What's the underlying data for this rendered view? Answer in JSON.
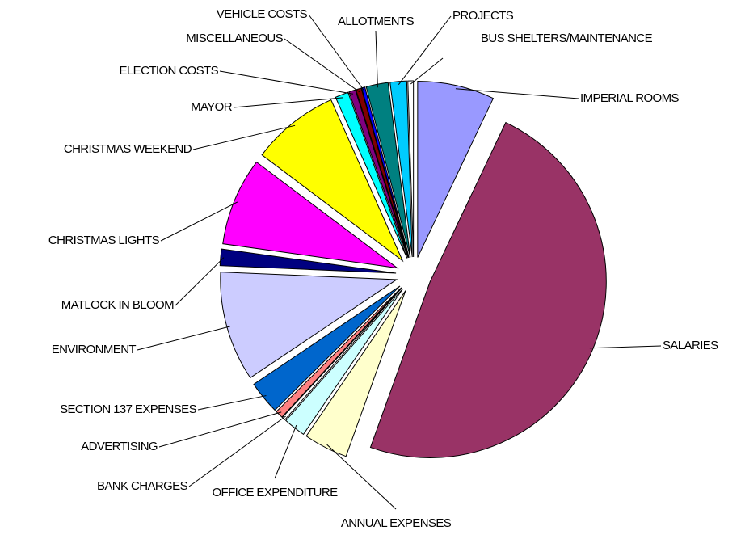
{
  "chart_data": {
    "type": "pie",
    "exploded": true,
    "categories": [
      "IMPERIAL ROOMS",
      "SALARIES",
      "ANNUAL EXPENSES",
      "OFFICE EXPENDITURE",
      "BANK CHARGES",
      "ADVERTISING",
      "SECTION 137 EXPENSES",
      "ENVIRONMENT",
      "MATLOCK IN BLOOM",
      "CHRISTMAS LIGHTS",
      "CHRISTMAS WEEKEND",
      "MAYOR",
      "ELECTION COSTS",
      "MISCELLANEOUS",
      "VEHICLE COSTS",
      "ALLOTMENTS",
      "PROJECTS",
      "BUS SHELTERS/MAINTENANCE"
    ],
    "values": [
      7,
      48,
      4,
      2,
      0.3,
      0.7,
      3,
      10,
      1.5,
      8,
      8,
      1.2,
      0.6,
      0.5,
      0.3,
      2,
      1.5,
      0.5
    ],
    "colors": [
      "#9999ff",
      "#993366",
      "#ffffcc",
      "#ccffff",
      "#ffffff",
      "#ff8080",
      "#0066cc",
      "#ccccff",
      "#000080",
      "#ff00ff",
      "#ffff00",
      "#00ffff",
      "#800080",
      "#800000",
      "#0000ff",
      "#008080",
      "#00ccff",
      "#ffffff"
    ]
  }
}
